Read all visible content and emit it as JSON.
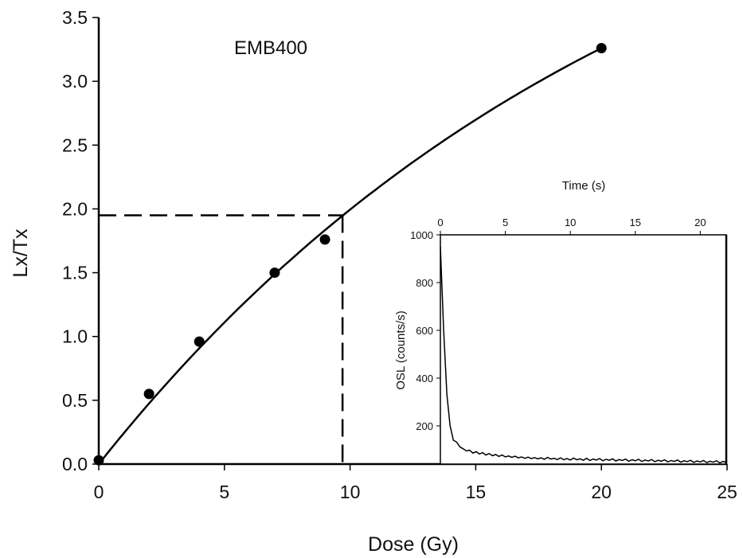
{
  "chart_data": [
    {
      "type": "scatter",
      "title": "",
      "annotation": "EMB400",
      "xlabel": "Dose (Gy)",
      "ylabel": "Lx/Tx",
      "xlim": [
        0,
        25
      ],
      "ylim": [
        0,
        3.5
      ],
      "xticks": [
        "0",
        "5",
        "10",
        "15",
        "20",
        "25"
      ],
      "yticks": [
        "0.0",
        "0.5",
        "1.0",
        "1.5",
        "2.0",
        "2.5",
        "3.0",
        "3.5"
      ],
      "grid": false,
      "points": [
        {
          "x": 0,
          "y": 0.03
        },
        {
          "x": 2,
          "y": 0.55
        },
        {
          "x": 4,
          "y": 0.96
        },
        {
          "x": 7,
          "y": 1.5
        },
        {
          "x": 9,
          "y": 1.76
        },
        {
          "x": 20,
          "y": 3.26
        }
      ],
      "fit": {
        "type": "saturating-exponential",
        "a": 5.46,
        "D0": 22,
        "x_range": [
          0,
          20
        ]
      },
      "interpolation": {
        "x": 9.7,
        "y": 1.95,
        "style": "dashed"
      }
    },
    {
      "type": "line",
      "placement": "inset-bottom-right",
      "xlabel": "Time (s)",
      "ylabel": "OSL (counts/s)",
      "xlim": [
        0,
        22
      ],
      "ylim": [
        40,
        1000
      ],
      "xticks": [
        "0",
        "5",
        "10",
        "15",
        "20"
      ],
      "yticks": [
        "200",
        "400",
        "600",
        "800",
        "1000"
      ],
      "x_step": 0.25,
      "values": [
        950,
        600,
        330,
        200,
        140,
        132,
        112,
        104,
        95,
        98,
        86,
        92,
        82,
        88,
        78,
        84,
        75,
        80,
        72,
        78,
        70,
        74,
        68,
        73,
        66,
        70,
        64,
        69,
        63,
        67,
        62,
        66,
        60,
        68,
        61,
        64,
        59,
        66,
        58,
        63,
        57,
        65,
        58,
        62,
        56,
        64,
        55,
        61,
        57,
        63,
        54,
        60,
        56,
        62,
        53,
        59,
        55,
        61,
        52,
        58,
        54,
        60,
        51,
        57,
        53,
        59,
        50,
        56,
        52,
        58,
        49,
        55,
        51,
        57,
        48,
        54,
        50,
        56,
        47,
        53,
        49,
        55,
        46,
        52,
        48,
        54,
        45,
        51,
        47
      ]
    }
  ]
}
